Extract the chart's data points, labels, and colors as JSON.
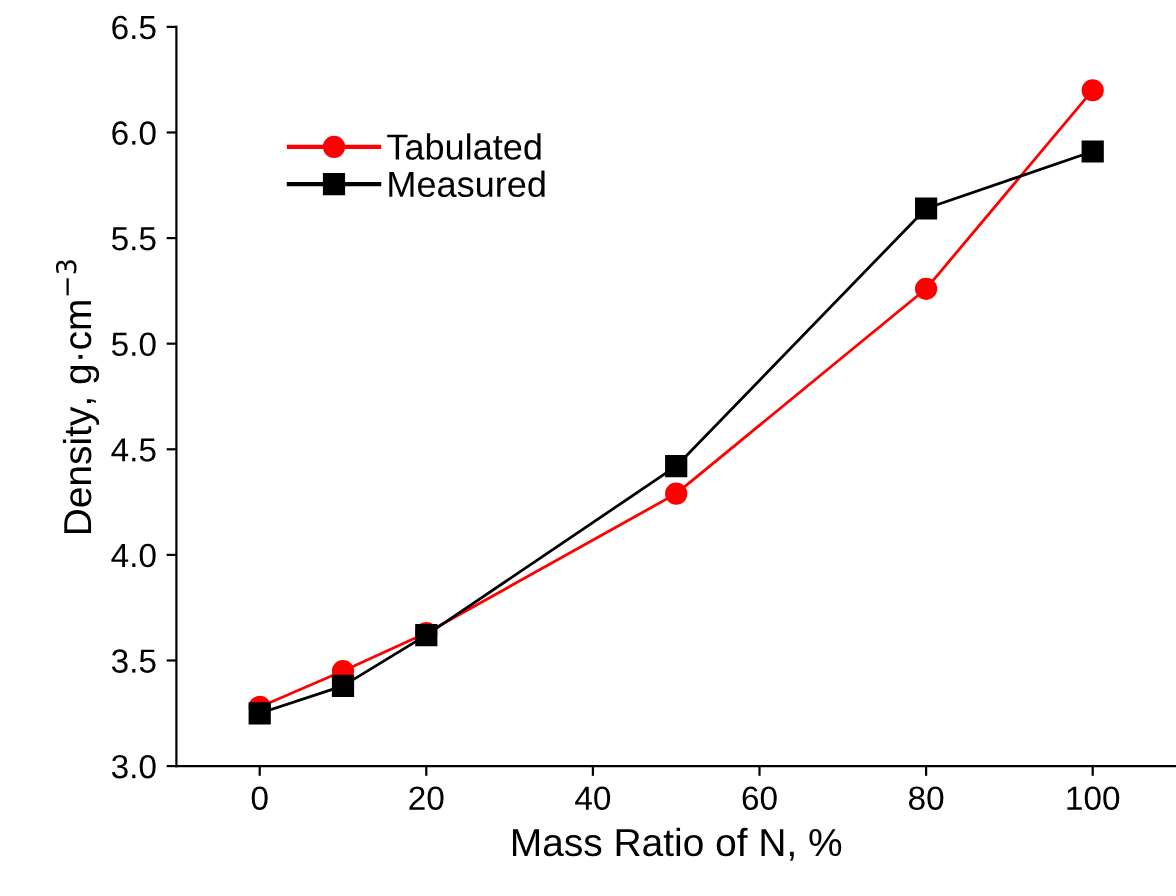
{
  "chart_data": {
    "type": "line",
    "xlabel": "Mass Ratio of N, %",
    "ylabel": "Density, g·cm$^{−3}$",
    "xlim": [
      -10,
      110
    ],
    "ylim": [
      3.0,
      6.5
    ],
    "xticks": [
      0,
      20,
      40,
      60,
      80,
      100
    ],
    "yticks": [
      {
        "value": 3.0,
        "label": "3.0"
      },
      {
        "value": 3.5,
        "label": "3.5"
      },
      {
        "value": 4.0,
        "label": "4.0"
      },
      {
        "value": 4.5,
        "label": "4.5"
      },
      {
        "value": 5.0,
        "label": "5.0"
      },
      {
        "value": 5.5,
        "label": "5.5"
      },
      {
        "value": 6.0,
        "label": "6.0"
      },
      {
        "value": 6.5,
        "label": "6.5"
      }
    ],
    "x": [
      0,
      10,
      20,
      50,
      80,
      100
    ],
    "line_style": "solid",
    "legend": "top left",
    "grid": false,
    "series": [
      {
        "name": "Tabulated",
        "color": "#ff0000",
        "marker": "circle",
        "values": [
          3.28,
          3.45,
          3.63,
          4.29,
          5.26,
          6.2
        ]
      },
      {
        "name": "Measured",
        "color": "#000000",
        "marker": "square",
        "values": [
          3.25,
          3.38,
          3.62,
          4.42,
          5.64,
          5.91
        ]
      }
    ]
  }
}
